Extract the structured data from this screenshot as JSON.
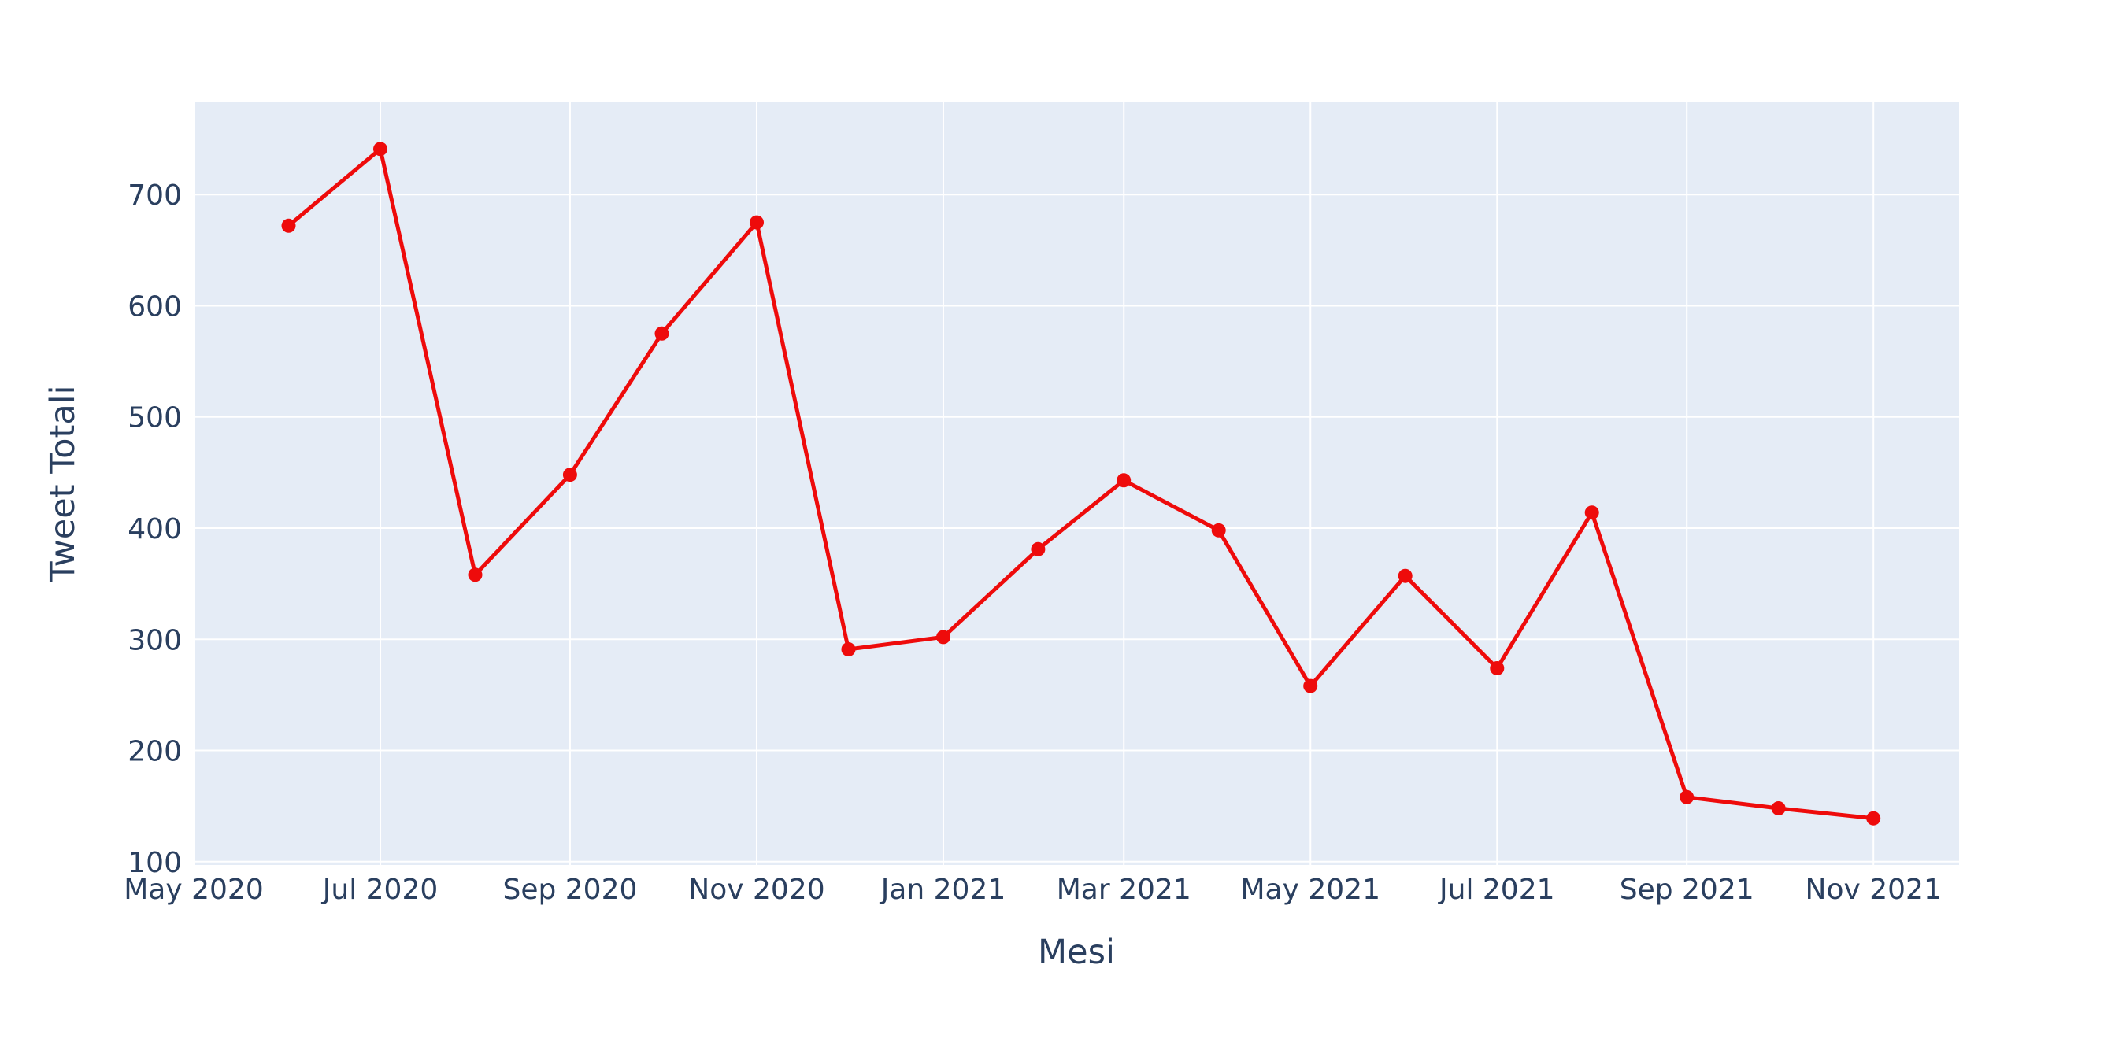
{
  "chart_data": {
    "type": "line",
    "title": "",
    "xlabel": "Mesi",
    "ylabel": "Tweet Totali",
    "x_tick_labels": [
      "May 2020",
      "Jul 2020",
      "Sep 2020",
      "Nov 2020",
      "Jan 2021",
      "Mar 2021",
      "May 2021",
      "Jul 2021",
      "Sep 2021",
      "Nov 2021"
    ],
    "x_tick_dates": [
      "2020-05-01",
      "2020-07-01",
      "2020-09-01",
      "2020-11-01",
      "2021-01-01",
      "2021-03-01",
      "2021-05-01",
      "2021-07-01",
      "2021-09-01",
      "2021-11-01"
    ],
    "y_tick_labels": [
      "100",
      "200",
      "300",
      "400",
      "500",
      "600",
      "700"
    ],
    "y_ticks": [
      100,
      200,
      300,
      400,
      500,
      600,
      700
    ],
    "xlim": [
      "2020-05-01",
      "2021-11-29"
    ],
    "ylim": [
      97,
      783
    ],
    "grid": true,
    "colors": {
      "line": "#ee0b0b",
      "plot_bg": "#e5ecf6",
      "grid": "#ffffff",
      "text": "#2a3f5f"
    },
    "series": [
      {
        "x": [
          "2020-06-01",
          "2020-07-01",
          "2020-08-01",
          "2020-09-01",
          "2020-10-01",
          "2020-11-01",
          "2020-12-01",
          "2021-01-01",
          "2021-02-01",
          "2021-03-01",
          "2021-04-01",
          "2021-05-01",
          "2021-06-01",
          "2021-07-01",
          "2021-08-01",
          "2021-09-01",
          "2021-10-01",
          "2021-11-01"
        ],
        "values": [
          672,
          741,
          358,
          448,
          575,
          675,
          291,
          302,
          381,
          443,
          398,
          258,
          357,
          274,
          414,
          158,
          148,
          139
        ]
      }
    ]
  }
}
